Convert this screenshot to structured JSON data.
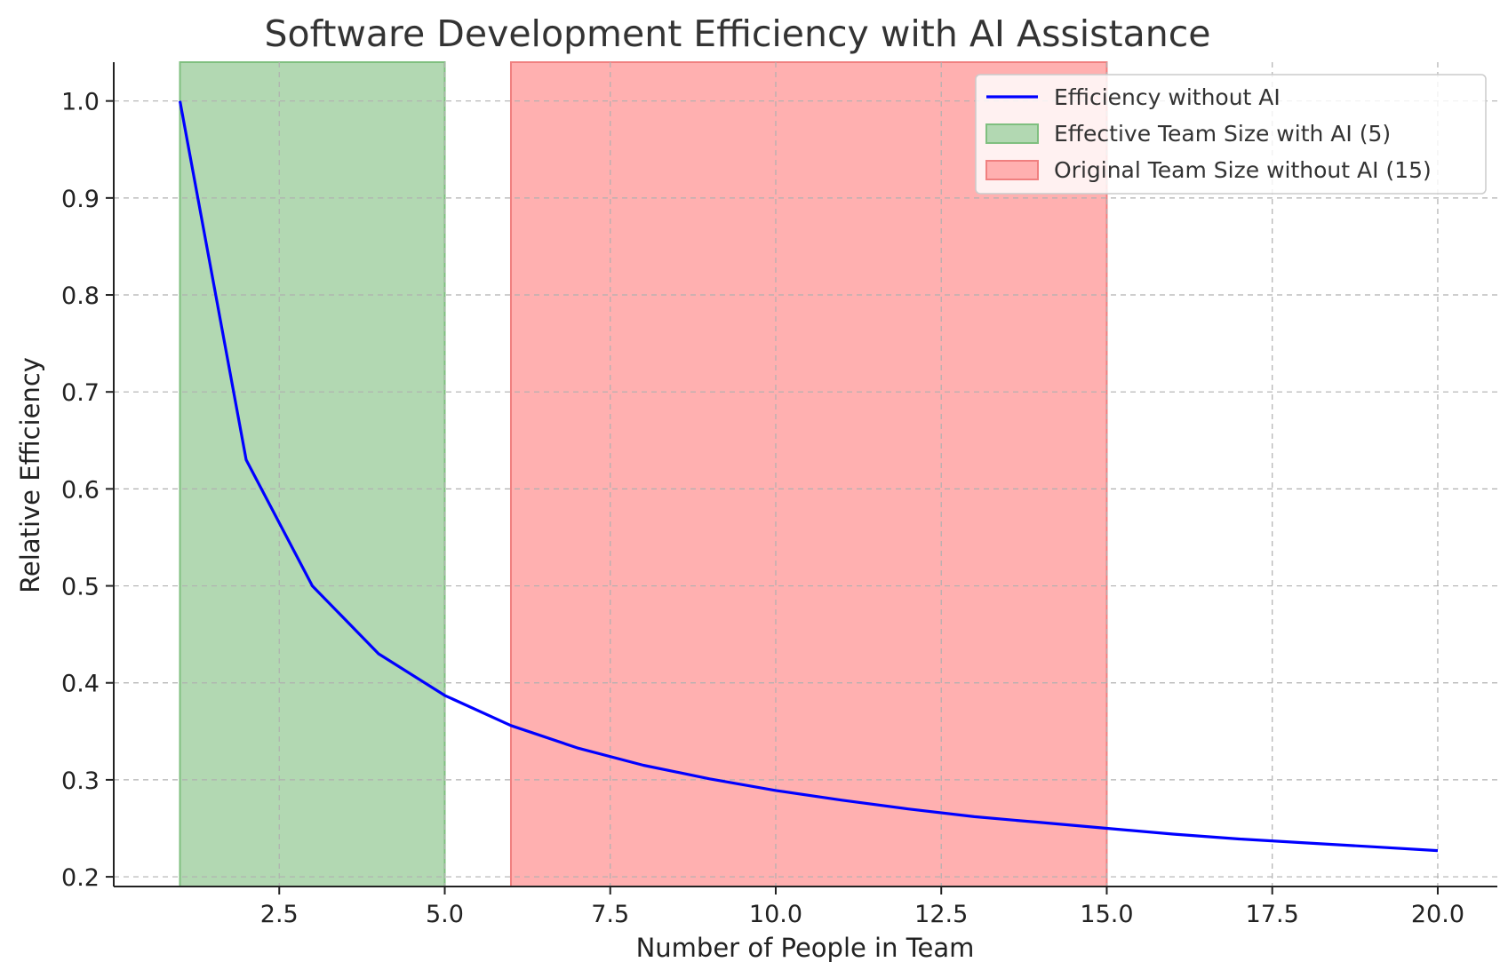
{
  "chart_data": {
    "type": "line",
    "title": "Software Development Efficiency with AI Assistance",
    "xlabel": "Number of People in Team",
    "ylabel": "Relative Efficiency",
    "xlim": [
      0.0,
      20.9
    ],
    "ylim": [
      0.19,
      1.04
    ],
    "xticks": [
      2.5,
      5.0,
      7.5,
      10.0,
      12.5,
      15.0,
      17.5,
      20.0
    ],
    "xtick_labels": [
      "2.5",
      "5.0",
      "7.5",
      "10.0",
      "12.5",
      "15.0",
      "17.5",
      "20.0"
    ],
    "yticks": [
      0.2,
      0.3,
      0.4,
      0.5,
      0.6,
      0.7,
      0.8,
      0.9,
      1.0
    ],
    "ytick_labels": [
      "0.2",
      "0.3",
      "0.4",
      "0.5",
      "0.6",
      "0.7",
      "0.8",
      "0.9",
      "1.0"
    ],
    "grid": true,
    "legend_position": "top-right",
    "series": [
      {
        "name": "Efficiency without AI",
        "color": "#0000ff",
        "x": [
          1,
          2,
          3,
          4,
          5,
          6,
          7,
          8,
          9,
          10,
          11,
          12,
          13,
          14,
          15,
          16,
          17,
          18,
          19,
          20
        ],
        "y": [
          1.0,
          0.63,
          0.5,
          0.43,
          0.387,
          0.356,
          0.333,
          0.315,
          0.301,
          0.289,
          0.279,
          0.27,
          0.262,
          0.256,
          0.25,
          0.244,
          0.239,
          0.235,
          0.231,
          0.227
        ]
      }
    ],
    "spans": [
      {
        "name": "Effective Team Size with AI (5)",
        "x0": 1,
        "x1": 5,
        "fill": "#b2d8b2",
        "edge": "#7fbf7f"
      },
      {
        "name": "Original Team Size without AI (15)",
        "x0": 6,
        "x1": 15,
        "fill": "#ffb0b0",
        "edge": "#f08080"
      }
    ]
  }
}
